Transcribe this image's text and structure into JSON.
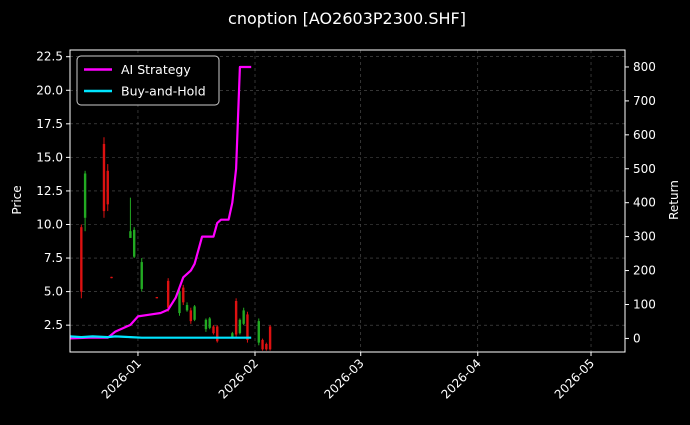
{
  "chart_data": {
    "type": "candlestick+line",
    "title": "cnoption [AO2603P2300.SHF]",
    "ylabel_left": "Price",
    "ylabel_right": "Return",
    "ylim_left": [
      0.5,
      23.0
    ],
    "ylim_right": [
      -40,
      850
    ],
    "xlim": [
      "2025-12-14",
      "2026-05-10"
    ],
    "grid": true,
    "legend_placement": "top-left",
    "left_ticks": [
      "2.5",
      "5.0",
      "7.5",
      "10.0",
      "12.5",
      "15.0",
      "17.5",
      "20.0",
      "22.5"
    ],
    "right_ticks": [
      "0",
      "100",
      "200",
      "300",
      "400",
      "500",
      "600",
      "700",
      "800"
    ],
    "x_ticks": [
      {
        "date": "2026-01-01",
        "label": "2026-01"
      },
      {
        "date": "2026-02-01",
        "label": "2026-02"
      },
      {
        "date": "2026-03-01",
        "label": "2026-03"
      },
      {
        "date": "2026-04-01",
        "label": "2026-04"
      },
      {
        "date": "2026-05-01",
        "label": "2026-05"
      }
    ],
    "colors": {
      "background": "#000000",
      "up": "#22aa22",
      "down": "#dd1111",
      "ai_strategy": "#ff00ff",
      "buy_and_hold": "#00e5ff",
      "grid": "#555555"
    },
    "candles": [
      {
        "date": "2025-12-17",
        "low": 4.5,
        "high": 10.0,
        "open": 9.8,
        "close": 5.0
      },
      {
        "date": "2025-12-18",
        "low": 9.5,
        "high": 14.0,
        "open": 10.5,
        "close": 13.8
      },
      {
        "date": "2025-12-23",
        "low": 10.5,
        "high": 16.5,
        "open": 16.0,
        "close": 11.0
      },
      {
        "date": "2025-12-24",
        "low": 11.0,
        "high": 14.5,
        "open": 14.0,
        "close": 11.5
      },
      {
        "date": "2025-12-25",
        "low": 6.0,
        "high": 6.1,
        "open": 6.1,
        "close": 6.0
      },
      {
        "date": "2025-12-30",
        "low": 9.0,
        "high": 12.0,
        "open": 9.0,
        "close": 9.5
      },
      {
        "date": "2025-12-31",
        "low": 7.5,
        "high": 9.8,
        "open": 7.6,
        "close": 9.6
      },
      {
        "date": "2026-01-02",
        "low": 5.0,
        "high": 7.5,
        "open": 5.2,
        "close": 7.2
      },
      {
        "date": "2026-01-06",
        "low": 4.5,
        "high": 4.6,
        "open": 4.6,
        "close": 4.5
      },
      {
        "date": "2026-01-09",
        "low": 3.5,
        "high": 6.0,
        "open": 5.8,
        "close": 3.8
      },
      {
        "date": "2026-01-12",
        "low": 3.2,
        "high": 5.2,
        "open": 3.4,
        "close": 5.0
      },
      {
        "date": "2026-01-13",
        "low": 4.0,
        "high": 5.5,
        "open": 5.3,
        "close": 4.2
      },
      {
        "date": "2026-01-14",
        "low": 3.5,
        "high": 4.2,
        "open": 3.6,
        "close": 4.0
      },
      {
        "date": "2026-01-15",
        "low": 2.6,
        "high": 3.8,
        "open": 3.6,
        "close": 2.8
      },
      {
        "date": "2026-01-16",
        "low": 2.8,
        "high": 4.0,
        "open": 2.9,
        "close": 3.9
      },
      {
        "date": "2026-01-19",
        "low": 2.0,
        "high": 3.0,
        "open": 2.2,
        "close": 2.9
      },
      {
        "date": "2026-01-20",
        "low": 2.2,
        "high": 3.1,
        "open": 2.3,
        "close": 3.0
      },
      {
        "date": "2026-01-21",
        "low": 1.8,
        "high": 2.5,
        "open": 2.4,
        "close": 1.9
      },
      {
        "date": "2026-01-22",
        "low": 1.2,
        "high": 2.5,
        "open": 2.4,
        "close": 1.3
      },
      {
        "date": "2026-01-26",
        "low": 1.5,
        "high": 2.0,
        "open": 1.6,
        "close": 1.9
      },
      {
        "date": "2026-01-27",
        "low": 1.6,
        "high": 4.5,
        "open": 4.3,
        "close": 1.8
      },
      {
        "date": "2026-01-28",
        "low": 1.8,
        "high": 3.0,
        "open": 1.9,
        "close": 2.9
      },
      {
        "date": "2026-01-29",
        "low": 2.5,
        "high": 3.8,
        "open": 2.6,
        "close": 3.6
      },
      {
        "date": "2026-01-30",
        "low": 1.2,
        "high": 3.5,
        "open": 3.3,
        "close": 1.4
      },
      {
        "date": "2026-02-02",
        "low": 1.0,
        "high": 3.0,
        "open": 1.2,
        "close": 2.8
      },
      {
        "date": "2026-02-03",
        "low": 0.6,
        "high": 1.5,
        "open": 1.4,
        "close": 0.7
      },
      {
        "date": "2026-02-04",
        "low": 0.6,
        "high": 1.2,
        "open": 1.1,
        "close": 0.7
      },
      {
        "date": "2026-02-05",
        "low": 0.6,
        "high": 2.5,
        "open": 2.4,
        "close": 0.7
      }
    ],
    "series": [
      {
        "name": "AI Strategy",
        "color": "#ff00ff",
        "x": [
          "2025-12-14",
          "2025-12-19",
          "2025-12-24",
          "2025-12-26",
          "2025-12-28",
          "2025-12-30",
          "2026-01-01",
          "2026-01-04",
          "2026-01-07",
          "2026-01-09",
          "2026-01-11",
          "2026-01-13",
          "2026-01-15",
          "2026-01-16",
          "2026-01-18",
          "2026-01-19",
          "2026-01-21",
          "2026-01-22",
          "2026-01-23",
          "2026-01-25",
          "2026-01-26",
          "2026-01-27",
          "2026-01-28",
          "2026-01-29",
          "2026-01-30",
          "2026-01-31"
        ],
        "values": [
          0,
          2,
          2,
          20,
          30,
          40,
          65,
          70,
          75,
          85,
          120,
          180,
          200,
          220,
          300,
          300,
          300,
          340,
          350,
          350,
          400,
          500,
          800,
          800,
          800,
          800
        ]
      },
      {
        "name": "Buy-and-Hold",
        "color": "#00e5ff",
        "x": [
          "2025-12-14",
          "2025-12-17",
          "2025-12-20",
          "2025-12-24",
          "2025-12-26",
          "2025-12-30",
          "2026-01-02",
          "2026-01-10",
          "2026-01-20",
          "2026-01-31"
        ],
        "values": [
          6,
          4,
          6,
          4,
          6,
          4,
          2,
          2,
          2,
          2
        ]
      }
    ]
  }
}
